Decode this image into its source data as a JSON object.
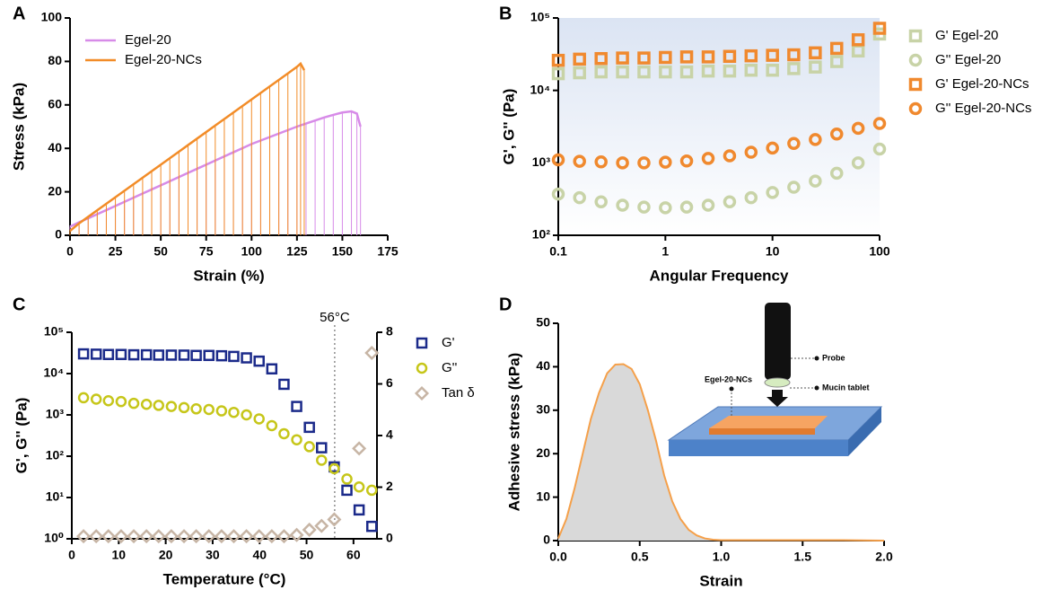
{
  "chart_data": [
    {
      "type": "line",
      "label": "A",
      "x_label": "Strain (%)",
      "y_label": "Stress (kPa)",
      "legend": "upper left",
      "xlim": [
        0,
        175
      ],
      "xticks": [
        0,
        25,
        50,
        75,
        100,
        125,
        150,
        175
      ],
      "ylim": [
        0,
        100
      ],
      "yticks": [
        0,
        20,
        40,
        60,
        80,
        100
      ],
      "series": [
        {
          "name": "Egel-20",
          "color": "#d78be8",
          "x": [
            0,
            5,
            10,
            15,
            20,
            25,
            30,
            35,
            40,
            45,
            50,
            55,
            60,
            65,
            70,
            75,
            80,
            85,
            90,
            95,
            100,
            105,
            110,
            115,
            120,
            125,
            130,
            135,
            140,
            145,
            150,
            155,
            158,
            160
          ],
          "values": [
            4,
            6,
            7.8,
            9.7,
            11.6,
            13.5,
            15.4,
            17.3,
            19.2,
            21.1,
            23,
            24.9,
            26.8,
            28.7,
            30.6,
            32.5,
            34.4,
            36.3,
            38.2,
            40.1,
            42,
            43.6,
            45.2,
            46.8,
            48.4,
            50,
            51.4,
            52.8,
            54.2,
            55.4,
            56.5,
            57,
            56,
            50
          ]
        },
        {
          "name": "Egel-20-NCs",
          "color": "#f28c28",
          "x": [
            0,
            5,
            10,
            15,
            20,
            25,
            30,
            35,
            40,
            45,
            50,
            55,
            60,
            65,
            70,
            75,
            80,
            85,
            90,
            95,
            100,
            105,
            110,
            115,
            120,
            125,
            127,
            129
          ],
          "values": [
            2,
            5.5,
            8.5,
            11.5,
            14.5,
            17.5,
            20.5,
            23.5,
            26.5,
            29.5,
            32.5,
            35.5,
            38.5,
            41.5,
            44.5,
            47.5,
            50.5,
            53.5,
            56.5,
            59.5,
            62.5,
            65.5,
            68.5,
            71.5,
            74.5,
            77.5,
            79,
            76
          ]
        }
      ]
    },
    {
      "type": "scatter",
      "label": "B",
      "x_label": "Angular Frequency",
      "y_label": "G', G'' (Pa)",
      "legend": "right",
      "log_x": true,
      "log_y": true,
      "xlim": [
        0.1,
        100
      ],
      "xticks": [
        0.1,
        1,
        10,
        100
      ],
      "ylim": [
        100,
        100000
      ],
      "yticks": [
        {
          "value": 100,
          "label": "10²"
        },
        {
          "value": 1000,
          "label": "10³"
        },
        {
          "value": 10000,
          "label": "10⁴"
        },
        {
          "value": 100000,
          "label": "10⁵"
        }
      ],
      "x": [
        0.1,
        0.158,
        0.251,
        0.398,
        0.631,
        1,
        1.58,
        2.51,
        3.98,
        6.31,
        10,
        15.8,
        25.1,
        39.8,
        63.1,
        100
      ],
      "series": [
        {
          "name": "G' Egel-20",
          "color": "#c8d3a7",
          "marker": "square",
          "values": [
            17000,
            17500,
            18000,
            18000,
            18000,
            18000,
            18000,
            18500,
            18500,
            19000,
            19000,
            20000,
            21000,
            25000,
            35000,
            60000
          ]
        },
        {
          "name": "G'' Egel-20",
          "color": "#c8d3a7",
          "marker": "circle",
          "values": [
            370,
            330,
            290,
            260,
            245,
            240,
            245,
            260,
            290,
            330,
            390,
            460,
            560,
            720,
            1000,
            1550
          ]
        },
        {
          "name": "G' Egel-20-NCs",
          "color": "#f0892e",
          "marker": "square",
          "values": [
            26000,
            27000,
            27500,
            28000,
            28000,
            28500,
            29000,
            29000,
            29500,
            30000,
            30500,
            31000,
            33000,
            38000,
            50000,
            72000
          ]
        },
        {
          "name": "G'' Egel-20-NCs",
          "color": "#f0892e",
          "marker": "circle",
          "values": [
            1100,
            1050,
            1030,
            1000,
            1000,
            1020,
            1060,
            1150,
            1250,
            1400,
            1600,
            1850,
            2100,
            2500,
            3000,
            3500
          ]
        }
      ]
    },
    {
      "type": "scatter",
      "label": "C",
      "x_label": "Temperature (°C)",
      "y_label": "G', G'' (Pa)",
      "legend": "right",
      "log_y": true,
      "xlim": [
        0,
        65
      ],
      "xticks": [
        0,
        10,
        20,
        30,
        40,
        50,
        60
      ],
      "ylim": [
        1,
        100000
      ],
      "yticks": [
        {
          "value": 1,
          "label": "10⁰"
        },
        {
          "value": 10,
          "label": "10¹"
        },
        {
          "value": 100,
          "label": "10²"
        },
        {
          "value": 1000,
          "label": "10³"
        },
        {
          "value": 10000,
          "label": "10⁴"
        },
        {
          "value": 100000,
          "label": "10⁵"
        }
      ],
      "y2lim": [
        0,
        8
      ],
      "y2ticks": [
        0,
        2,
        4,
        6,
        8
      ],
      "vline": {
        "x": 56,
        "label": "56°C"
      },
      "x": [
        2.5,
        5.2,
        7.8,
        10.5,
        13.2,
        15.9,
        18.5,
        21.2,
        23.9,
        26.5,
        29.2,
        31.9,
        34.5,
        37.2,
        39.9,
        42.6,
        45.2,
        47.9,
        50.6,
        53.2,
        55.9,
        58.6,
        61.2,
        63.9
      ],
      "series": [
        {
          "name": "G'",
          "color": "#1b2a8a",
          "marker": "square",
          "values": [
            30000,
            29500,
            29000,
            29000,
            28500,
            28500,
            28000,
            28000,
            28000,
            27500,
            27500,
            27000,
            26000,
            24000,
            20000,
            13000,
            5500,
            1600,
            500,
            160,
            55,
            15,
            5,
            2
          ]
        },
        {
          "name": "G''",
          "color": "#c6c619",
          "marker": "circle",
          "values": [
            2600,
            2400,
            2200,
            2100,
            1900,
            1800,
            1700,
            1600,
            1500,
            1400,
            1350,
            1250,
            1150,
            1000,
            800,
            550,
            350,
            250,
            170,
            80,
            50,
            28,
            18,
            15
          ]
        },
        {
          "name": "Tan δ",
          "color": "#c7b5a5",
          "marker": "diamond",
          "axis": "y2",
          "values": [
            0.1,
            0.1,
            0.1,
            0.1,
            0.1,
            0.1,
            0.1,
            0.1,
            0.1,
            0.1,
            0.1,
            0.1,
            0.1,
            0.1,
            0.1,
            0.1,
            0.1,
            0.15,
            0.35,
            0.5,
            0.75,
            null,
            3.5,
            7.2
          ]
        }
      ]
    },
    {
      "type": "area",
      "label": "D",
      "x_label": "Strain",
      "y_label": "Adhesive stress (kPa)",
      "xlim": [
        0,
        2
      ],
      "xticks": [
        {
          "value": 0,
          "label": "0.0"
        },
        0.5,
        {
          "value": 1,
          "label": "1.0"
        },
        1.5,
        {
          "value": 2,
          "label": "2.0"
        }
      ],
      "ylim": [
        0,
        50
      ],
      "yticks": [
        0,
        10,
        20,
        30,
        40,
        50
      ],
      "color": "#f5a04a",
      "fill": "#d9d9d9",
      "x": [
        0,
        0.05,
        0.1,
        0.15,
        0.2,
        0.25,
        0.3,
        0.35,
        0.4,
        0.45,
        0.5,
        0.55,
        0.6,
        0.65,
        0.7,
        0.75,
        0.8,
        0.85,
        0.9,
        0.95,
        1,
        1.25,
        1.5,
        1.75,
        2
      ],
      "values": [
        0.5,
        5,
        12,
        20,
        28,
        34,
        38.5,
        40.5,
        40.6,
        39.5,
        36,
        30,
        23,
        15,
        9,
        5,
        2.5,
        1.2,
        0.5,
        0.2,
        0.1,
        0.1,
        0.1,
        0.1,
        0
      ],
      "annotations": [
        "Probe",
        "Egel-20-NCs",
        "Mucin tablet"
      ]
    }
  ]
}
